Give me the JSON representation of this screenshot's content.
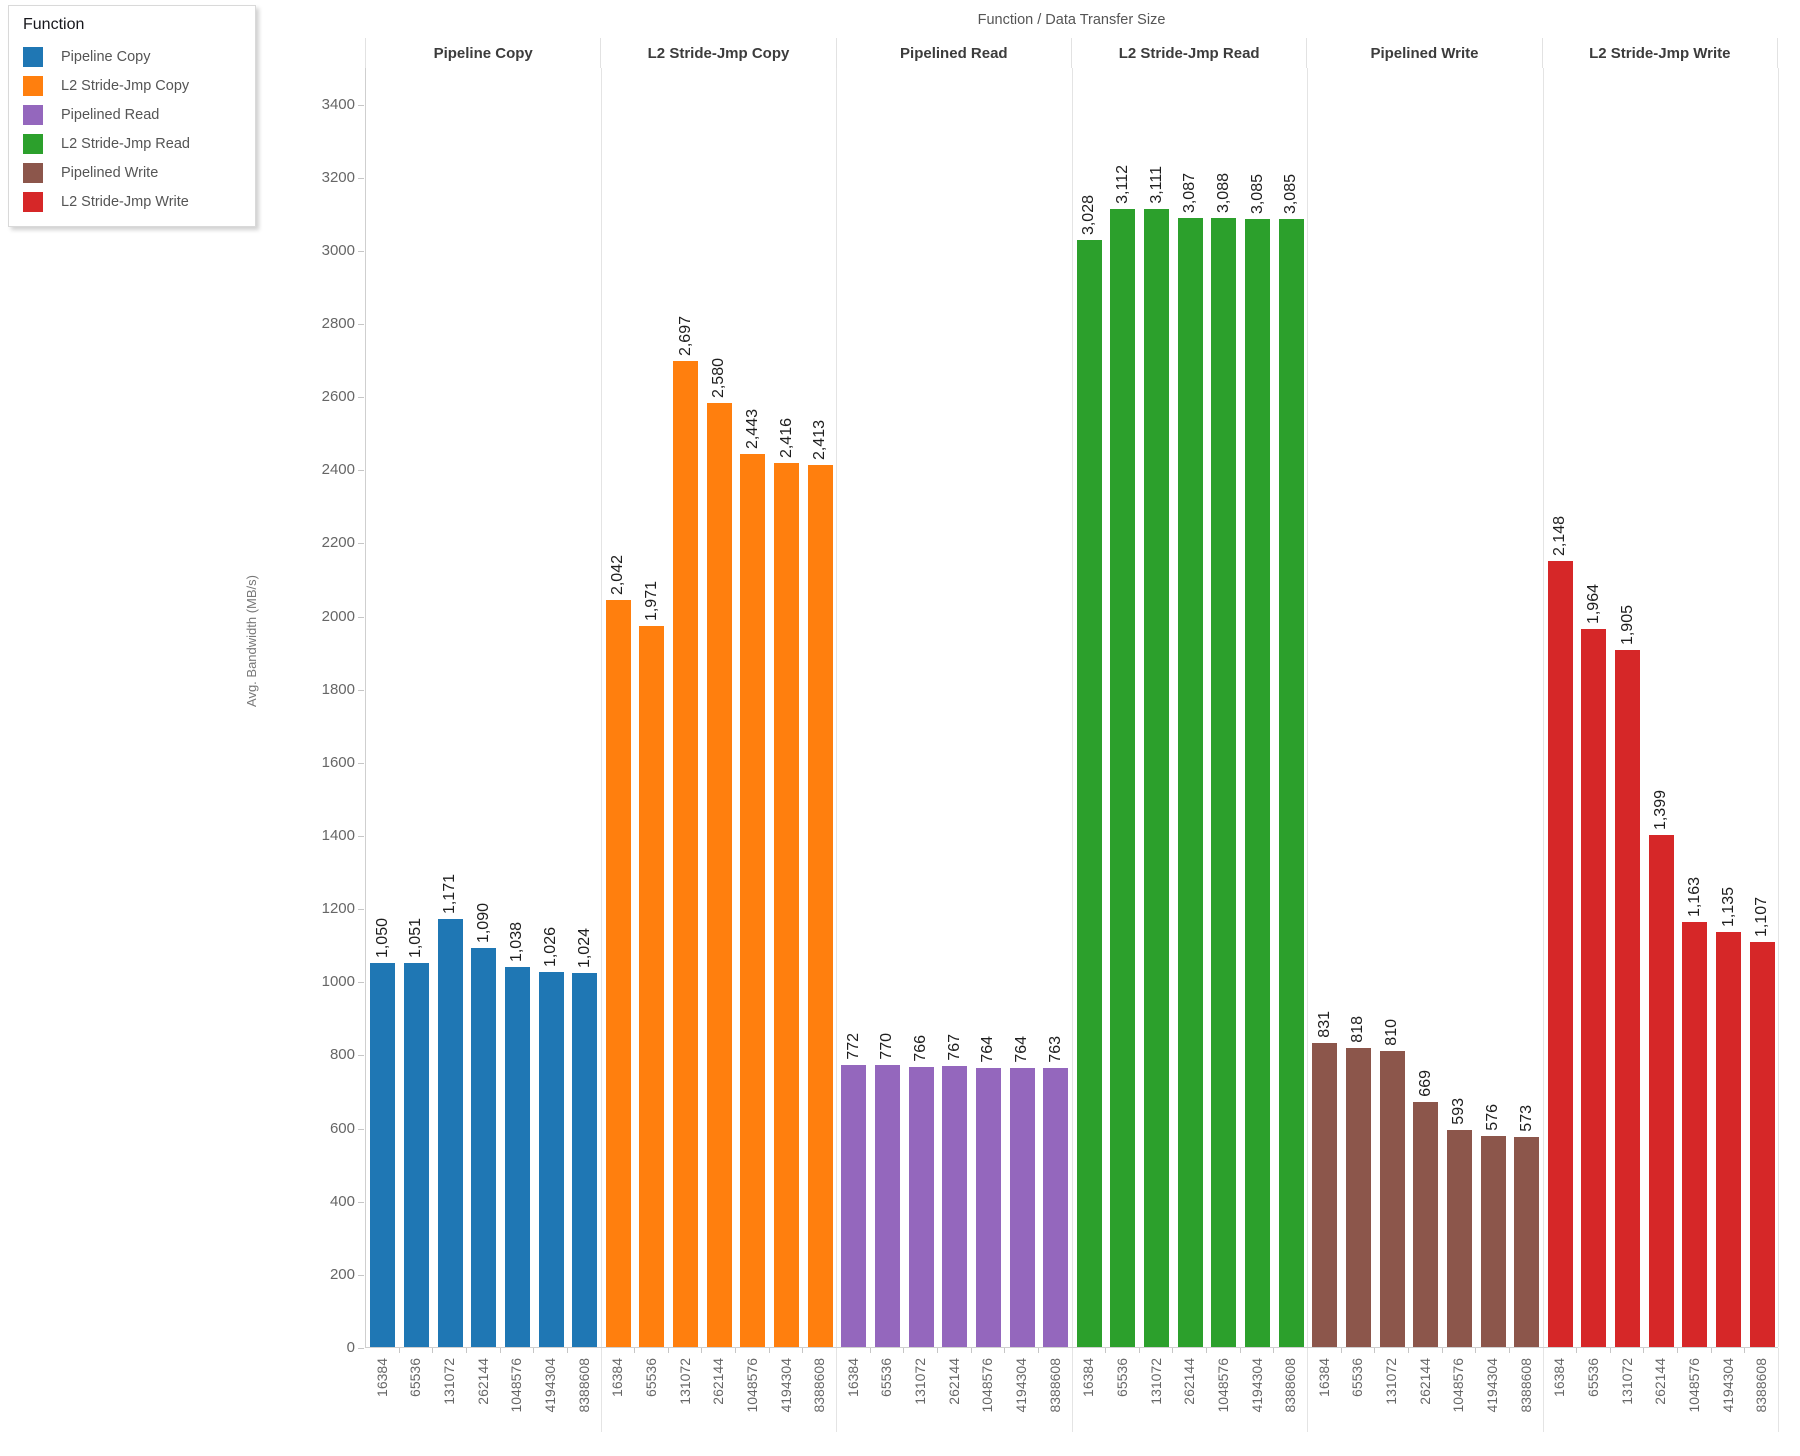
{
  "chart_title": "Function  /  Data Transfer Size",
  "legend": {
    "title": "Function",
    "items": [
      {
        "label": "Pipeline Copy",
        "color": "#1f77b4"
      },
      {
        "label": "L2 Stride-Jmp Copy",
        "color": "#ff7f0e"
      },
      {
        "label": "Pipelined Read",
        "color": "#9467bd"
      },
      {
        "label": "L2 Stride-Jmp Read",
        "color": "#2ca02c"
      },
      {
        "label": "Pipelined Write",
        "color": "#8c564b"
      },
      {
        "label": "L2 Stride-Jmp Write",
        "color": "#d62728"
      }
    ]
  },
  "y_axis": {
    "label": "Avg.  Bandwidth (MB/s)",
    "ticks": [
      0,
      200,
      400,
      600,
      800,
      1000,
      1200,
      1400,
      1600,
      1800,
      2000,
      2200,
      2400,
      2600,
      2800,
      3000,
      3200,
      3400
    ],
    "max": 3500
  },
  "chart_data": {
    "type": "bar",
    "title": "Function / Data Transfer Size",
    "xlabel": "Data Transfer Size",
    "ylabel": "Avg. Bandwidth (MB/s)",
    "ylim": [
      0,
      3500
    ],
    "grid": false,
    "legend_position": "top-left",
    "categories": [
      "16384",
      "65536",
      "131072",
      "262144",
      "1048576",
      "4194304",
      "8388608"
    ],
    "series": [
      {
        "name": "Pipeline Copy",
        "color": "#1f77b4",
        "values": [
          1050,
          1051,
          1171,
          1090,
          1038,
          1026,
          1024
        ],
        "labels": [
          "1,050",
          "1,051",
          "1,171",
          "1,090",
          "1,038",
          "1,026",
          "1,024"
        ]
      },
      {
        "name": "L2 Stride-Jmp Copy",
        "color": "#ff7f0e",
        "values": [
          2042,
          1971,
          2697,
          2580,
          2443,
          2416,
          2413
        ],
        "labels": [
          "2,042",
          "1,971",
          "2,697",
          "2,580",
          "2,443",
          "2,416",
          "2,413"
        ]
      },
      {
        "name": "Pipelined Read",
        "color": "#9467bd",
        "values": [
          772,
          770,
          766,
          767,
          764,
          764,
          763
        ],
        "labels": [
          "772",
          "770",
          "766",
          "767",
          "764",
          "764",
          "763"
        ]
      },
      {
        "name": "L2 Stride-Jmp Read",
        "color": "#2ca02c",
        "values": [
          3028,
          3112,
          3111,
          3087,
          3088,
          3085,
          3085
        ],
        "labels": [
          "3,028",
          "3,112",
          "3,111",
          "3,087",
          "3,088",
          "3,085",
          "3,085"
        ]
      },
      {
        "name": "Pipelined Write",
        "color": "#8c564b",
        "values": [
          831,
          818,
          810,
          669,
          593,
          576,
          573
        ],
        "labels": [
          "831",
          "818",
          "810",
          "669",
          "593",
          "576",
          "573"
        ]
      },
      {
        "name": "L2 Stride-Jmp Write",
        "color": "#d62728",
        "values": [
          2148,
          1964,
          1905,
          1399,
          1163,
          1135,
          1107
        ],
        "labels": [
          "2,148",
          "1,964",
          "1,905",
          "1,399",
          "1,163",
          "1,135",
          "1,107"
        ]
      }
    ]
  }
}
